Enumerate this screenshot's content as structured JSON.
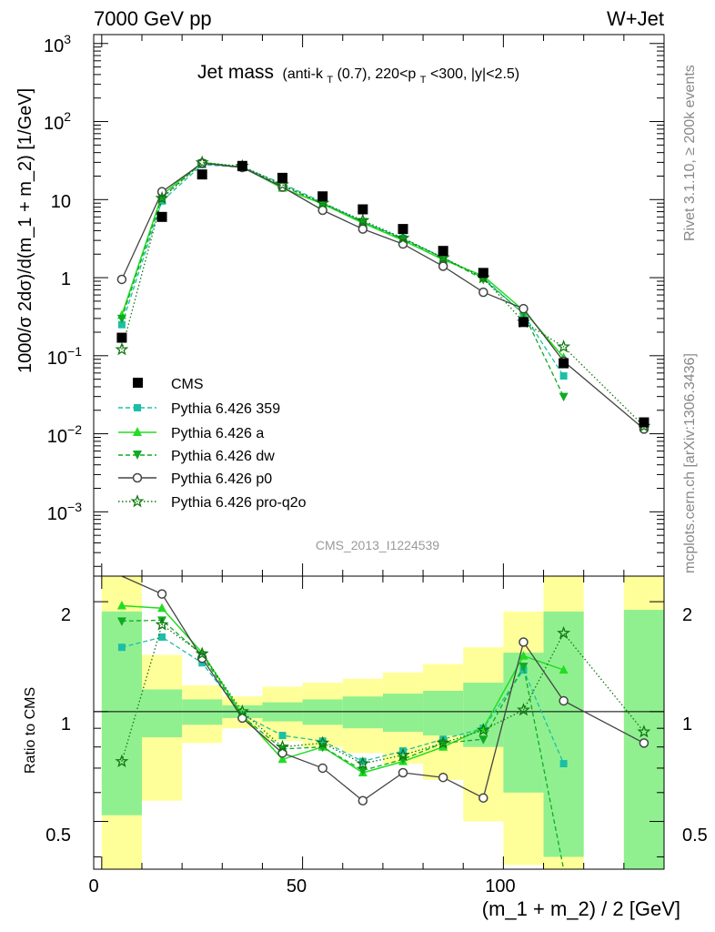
{
  "header": {
    "left": "7000 GeV pp",
    "right": "W+Jet",
    "rivet": "Rivet 3.1.10, ≥ 200k events",
    "site": "mcplots.cern.ch [arXiv:1306.3436]",
    "analysis": "CMS_2013_I1224539"
  },
  "title": {
    "main": "Jet mass",
    "p1": "(anti-k",
    "s1": "T",
    "p2": "(0.7), 220<p",
    "s2": "T",
    "p3": "<300, |y|<2.5)"
  },
  "axis_text": {
    "ylabel": "1000/σ 2dσ)/d(m_1 + m_2) [1/GeV]",
    "ratio_ylabel": "Ratio to CMS",
    "xlabel": "(m_1 + m_2) / 2 [GeV]"
  },
  "ticks": {
    "x": [
      "0",
      "50",
      "100"
    ],
    "y": [
      {
        "b": "10",
        "e": "3"
      },
      {
        "b": "10",
        "e": "2"
      },
      {
        "b": "10",
        "e": ""
      },
      {
        "b": "1",
        "e": ""
      },
      {
        "b": "10",
        "e": "−1"
      },
      {
        "b": "10",
        "e": "−2"
      },
      {
        "b": "10",
        "e": "−3"
      }
    ],
    "ratio": [
      "2",
      "1",
      "0.5"
    ]
  },
  "colors": {
    "cms": "#000000",
    "p359": "#1cbfa6",
    "pa": "#22dd22",
    "pdw": "#11aa22",
    "pp0": "#444444",
    "pq2o": "#117711",
    "band_stat": "#90f090",
    "band_tot": "#ffff99"
  },
  "chart_data": {
    "type": "scatter",
    "xlabel": "(m_1 + m_2) / 2 [GeV]",
    "ylabel": "1000/σ 2dσ)/d(m_1 + m_2) [1/GeV]",
    "xlim": [
      -2,
      140
    ],
    "ylim": [
      0.00015,
      1300
    ],
    "yscale": "log",
    "ratio_ylim": [
      0.37,
      2.35
    ],
    "ratio_yscale": "log",
    "legend_placement": "bottom-left",
    "x": [
      5,
      15,
      25,
      35,
      45,
      55,
      65,
      75,
      85,
      95,
      105,
      115,
      135
    ],
    "bin_edges": [
      0,
      10,
      20,
      30,
      40,
      50,
      60,
      70,
      80,
      90,
      100,
      110,
      120,
      130,
      140
    ],
    "cms": {
      "name": "CMS",
      "values": [
        0.17,
        6.0,
        21.0,
        27.0,
        19.0,
        11.0,
        7.5,
        4.2,
        2.2,
        1.15,
        0.27,
        0.08,
        0.014
      ],
      "stat_band": [
        [
          0.52,
          1.88
        ],
        [
          0.85,
          1.15
        ],
        [
          0.92,
          1.08
        ],
        [
          0.96,
          1.04
        ],
        [
          0.94,
          1.06
        ],
        [
          0.92,
          1.08
        ],
        [
          0.9,
          1.1
        ],
        [
          0.88,
          1.12
        ],
        [
          0.86,
          1.14
        ],
        [
          0.8,
          1.2
        ],
        [
          0.6,
          1.45
        ],
        [
          0.4,
          1.88
        ],
        [
          0.4,
          0.4
        ],
        [
          0.35,
          1.9
        ]
      ],
      "total_band": [
        [
          0.35,
          2.35
        ],
        [
          0.57,
          1.43
        ],
        [
          0.82,
          1.18
        ],
        [
          0.9,
          1.1
        ],
        [
          0.83,
          1.17
        ],
        [
          0.8,
          1.2
        ],
        [
          0.77,
          1.23
        ],
        [
          0.72,
          1.28
        ],
        [
          0.65,
          1.35
        ],
        [
          0.5,
          1.5
        ],
        [
          0.38,
          1.88
        ],
        [
          0.35,
          2.35
        ],
        [
          0.4,
          0.4
        ],
        [
          0.35,
          2.35
        ]
      ]
    },
    "series": [
      {
        "name": "Pythia 6.426 359",
        "values": [
          0.25,
          9.6,
          28.0,
          26.0,
          16.0,
          9.2,
          5.2,
          3.2,
          1.8,
          1.0,
          0.34,
          0.055,
          null
        ],
        "ratio": [
          1.5,
          1.6,
          1.36,
          0.98,
          0.86,
          0.83,
          0.73,
          0.78,
          0.84,
          0.9,
          1.3,
          0.72,
          null
        ]
      },
      {
        "name": "Pythia 6.426 a",
        "values": [
          0.33,
          11.5,
          30.0,
          26.0,
          14.0,
          8.8,
          5.0,
          3.0,
          1.7,
          1.05,
          0.38,
          0.095,
          null
        ],
        "ratio": [
          1.95,
          1.92,
          1.45,
          0.98,
          0.74,
          0.8,
          0.68,
          0.73,
          0.8,
          0.9,
          1.42,
          1.3,
          null
        ]
      },
      {
        "name": "Pythia 6.426 dw",
        "values": [
          0.3,
          10.7,
          29.5,
          26.0,
          15.0,
          8.9,
          5.2,
          3.1,
          1.8,
          0.95,
          0.35,
          0.03,
          null
        ],
        "ratio": [
          1.77,
          1.78,
          1.43,
          0.97,
          0.79,
          0.8,
          0.69,
          0.74,
          0.82,
          0.84,
          1.33,
          0.35,
          null
        ]
      },
      {
        "name": "Pythia 6.426 p0",
        "values": [
          0.95,
          12.6,
          29.3,
          25.8,
          14.5,
          7.3,
          4.2,
          2.7,
          1.4,
          0.65,
          0.4,
          0.085,
          0.0115
        ],
        "ratio": [
          5.6,
          2.1,
          1.4,
          0.96,
          0.77,
          0.7,
          0.57,
          0.68,
          0.66,
          0.58,
          1.55,
          1.07,
          0.82
        ]
      },
      {
        "name": "Pythia 6.426 pro-q2o",
        "values": [
          0.12,
          10.4,
          29.8,
          26.8,
          15.5,
          9.0,
          5.4,
          3.2,
          1.8,
          1.0,
          0.27,
          0.13,
          0.0125
        ],
        "ratio": [
          0.73,
          1.73,
          1.44,
          1.0,
          0.8,
          0.82,
          0.72,
          0.76,
          0.82,
          0.89,
          1.01,
          1.64,
          0.88
        ]
      }
    ]
  }
}
